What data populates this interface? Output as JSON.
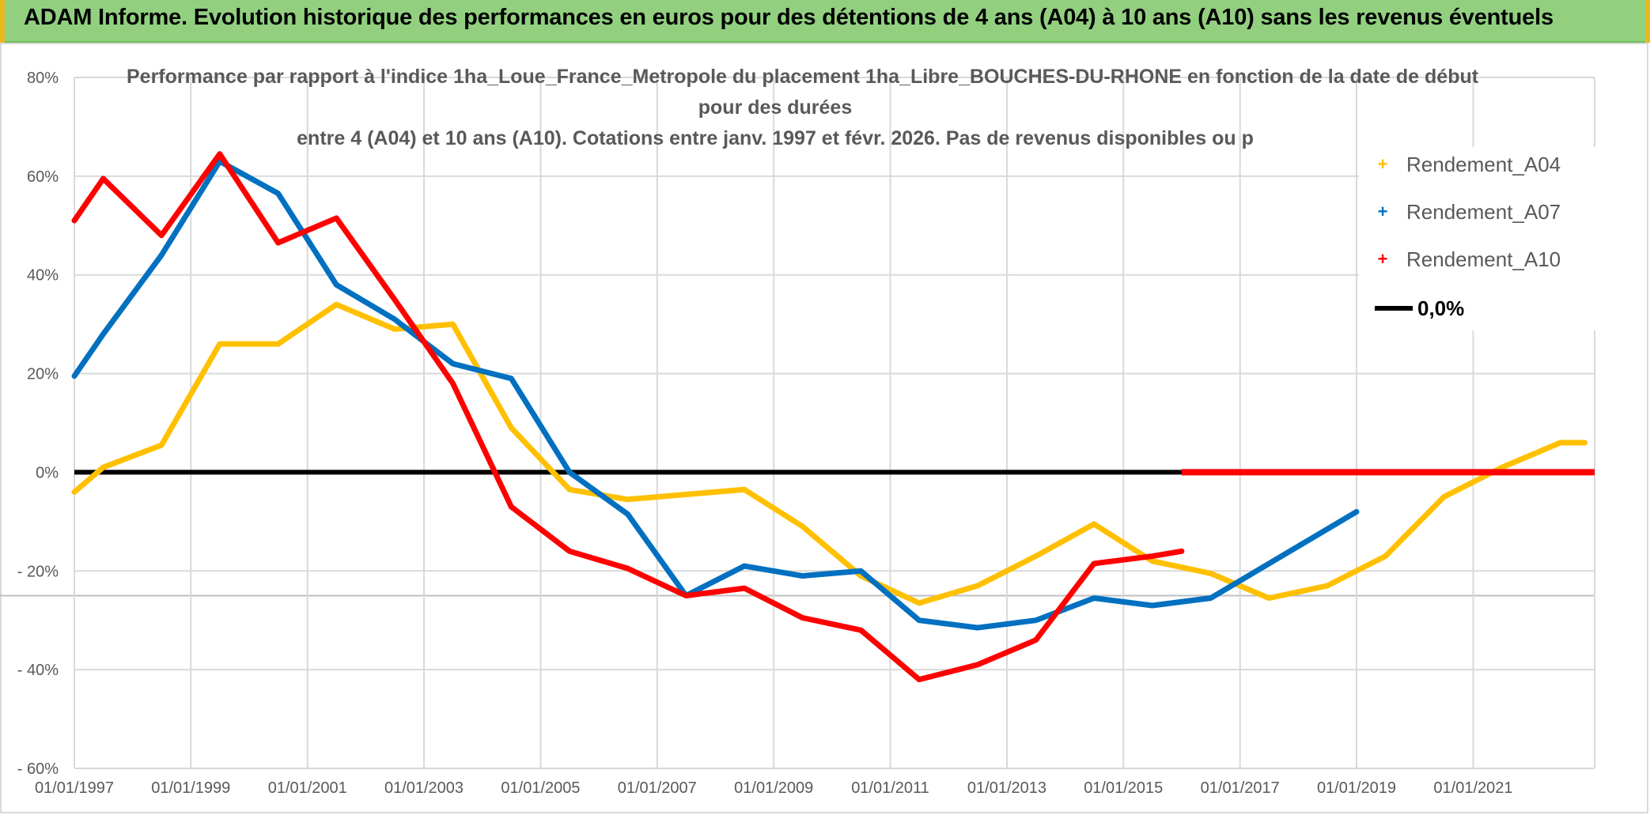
{
  "header": {
    "title": "ADAM Informe. Evolution historique des performances en euros pour des détentions de 4 ans (A04) à 10 ans (A10) sans les revenus éventuels"
  },
  "colors": {
    "banner": "#92d080",
    "a04": "#ffc000",
    "a07": "#0070c0",
    "a10": "#ff0000",
    "zero": "#000000",
    "grid": "#d9d9d9"
  },
  "chart_data": {
    "type": "line",
    "title_lines": [
      "Performance par rapport à l'indice 1ha_Loue_France_Metropole  du placement 1ha_Libre_BOUCHES-DU-RHONE en fonction de la date de début",
      "pour des durées",
      "entre 4 (A04) et 10 ans (A10). Cotations entre janv. 1997 et févr. 2026. Pas de revenus disponibles ou p"
    ],
    "x_tick_labels": [
      "01/01/1997",
      "01/01/1999",
      "01/01/2001",
      "01/01/2003",
      "01/01/2005",
      "01/01/2007",
      "01/01/2009",
      "01/01/2011",
      "01/01/2013",
      "01/01/2015",
      "01/01/2017",
      "01/01/2019",
      "01/01/2021"
    ],
    "x_range": [
      "1997-01-01",
      "2023-02-01"
    ],
    "y_tick_labels": [
      "80%",
      "60%",
      "40%",
      "20%",
      "0%",
      "- 20%",
      "- 40%",
      "- 60%"
    ],
    "y_tick_values": [
      80,
      60,
      40,
      20,
      0,
      -20,
      -40,
      -60
    ],
    "ylim": [
      -60,
      80
    ],
    "grid": true,
    "legend_position": "top-right",
    "series": [
      {
        "name": "Rendement_A04",
        "color": "#ffc000",
        "points": [
          [
            "1997-01-01",
            -4
          ],
          [
            "1997-07-01",
            1
          ],
          [
            "1998-07-01",
            5.5
          ],
          [
            "1999-07-01",
            26
          ],
          [
            "2000-07-01",
            26
          ],
          [
            "2001-07-01",
            34
          ],
          [
            "2002-07-01",
            29
          ],
          [
            "2003-07-01",
            30
          ],
          [
            "2004-07-01",
            9
          ],
          [
            "2005-07-01",
            -3.5
          ],
          [
            "2006-07-01",
            -5.5
          ],
          [
            "2007-07-01",
            -4.5
          ],
          [
            "2008-07-01",
            -3.5
          ],
          [
            "2009-07-01",
            -11
          ],
          [
            "2010-07-01",
            -21
          ],
          [
            "2011-07-01",
            -26.5
          ],
          [
            "2012-07-01",
            -23
          ],
          [
            "2013-07-01",
            -17
          ],
          [
            "2014-07-01",
            -10.5
          ],
          [
            "2015-07-01",
            -18
          ],
          [
            "2016-07-01",
            -20.5
          ],
          [
            "2017-07-01",
            -25.5
          ],
          [
            "2018-07-01",
            -23
          ],
          [
            "2019-07-01",
            -17
          ],
          [
            "2020-07-01",
            -5
          ],
          [
            "2021-07-01",
            1
          ],
          [
            "2022-07-01",
            6
          ],
          [
            "2022-12-01",
            6
          ]
        ]
      },
      {
        "name": "Rendement_A07",
        "color": "#0070c0",
        "points": [
          [
            "1997-01-01",
            19.5
          ],
          [
            "1997-07-01",
            28
          ],
          [
            "1998-07-01",
            44
          ],
          [
            "1999-07-01",
            63
          ],
          [
            "2000-07-01",
            56.5
          ],
          [
            "2001-07-01",
            38
          ],
          [
            "2002-07-01",
            31
          ],
          [
            "2003-07-01",
            22
          ],
          [
            "2004-07-01",
            19
          ],
          [
            "2005-07-01",
            0
          ],
          [
            "2006-07-01",
            -8.5
          ],
          [
            "2007-07-01",
            -25
          ],
          [
            "2008-07-01",
            -19
          ],
          [
            "2009-07-01",
            -21
          ],
          [
            "2010-07-01",
            -20
          ],
          [
            "2011-07-01",
            -30
          ],
          [
            "2012-07-01",
            -31.5
          ],
          [
            "2013-07-01",
            -30
          ],
          [
            "2014-07-01",
            -25.5
          ],
          [
            "2015-07-01",
            -27
          ],
          [
            "2016-07-01",
            -25.5
          ],
          [
            "2019-01-01",
            -8
          ]
        ]
      },
      {
        "name": "Rendement_A10",
        "color": "#ff0000",
        "points": [
          [
            "1997-01-01",
            51
          ],
          [
            "1997-07-01",
            59.5
          ],
          [
            "1998-07-01",
            48
          ],
          [
            "1999-07-01",
            64.5
          ],
          [
            "2000-07-01",
            46.5
          ],
          [
            "2001-07-01",
            51.5
          ],
          [
            "2002-07-01",
            35
          ],
          [
            "2003-07-01",
            18
          ],
          [
            "2004-07-01",
            -7
          ],
          [
            "2005-07-01",
            -16
          ],
          [
            "2006-07-01",
            -19.5
          ],
          [
            "2007-07-01",
            -25
          ],
          [
            "2008-07-01",
            -23.5
          ],
          [
            "2009-07-01",
            -29.5
          ],
          [
            "2010-07-01",
            -32
          ],
          [
            "2011-07-01",
            -42
          ],
          [
            "2012-07-01",
            -39
          ],
          [
            "2013-07-01",
            -34
          ],
          [
            "2014-07-01",
            -18.5
          ],
          [
            "2015-07-01",
            -17
          ],
          [
            "2016-01-01",
            -16
          ]
        ],
        "tail_zero_from": "2016-01-01"
      },
      {
        "name": "0,0%",
        "color": "#000000",
        "points": [
          [
            "1997-01-01",
            0
          ],
          [
            "2016-01-01",
            0
          ]
        ]
      }
    ]
  }
}
